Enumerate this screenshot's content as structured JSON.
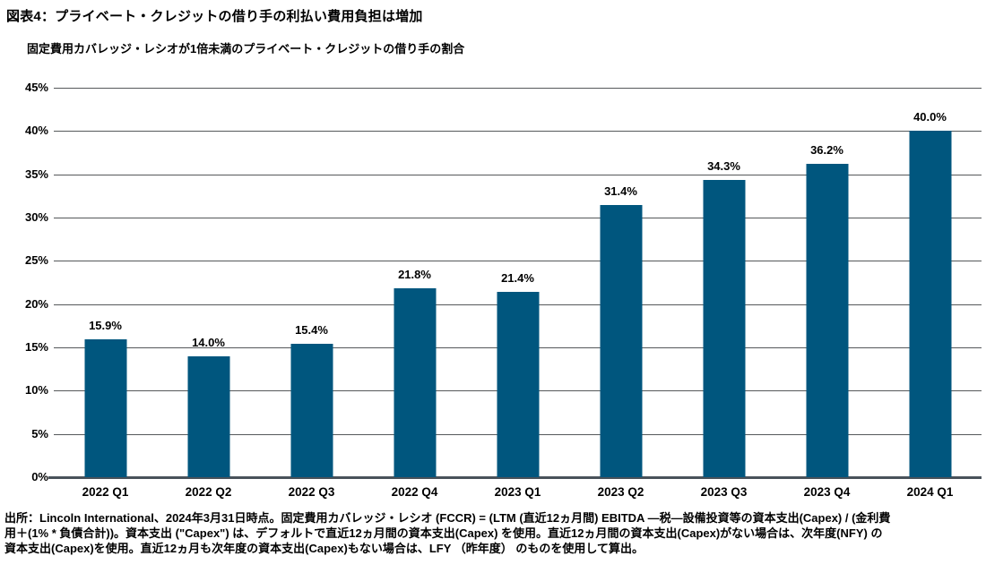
{
  "header": {
    "title": "図表4：プライベート・クレジットの借り手の利払い費用負担は増加",
    "subtitle": "固定費用カバレッジ・レシオが1倍未満のプライベート・クレジットの借り手の割合"
  },
  "chart_data": {
    "type": "bar",
    "title": "図表4：プライベート・クレジットの借り手の利払い費用負担は増加",
    "subtitle": "固定費用カバレッジ・レシオが1倍未満のプライベート・クレジットの借り手の割合",
    "categories": [
      "2022 Q1",
      "2022 Q2",
      "2022 Q3",
      "2022 Q4",
      "2023 Q1",
      "2023 Q2",
      "2023 Q3",
      "2023 Q4",
      "2024 Q1"
    ],
    "values": [
      15.9,
      14.0,
      15.4,
      21.8,
      21.4,
      31.4,
      34.3,
      36.2,
      40.0
    ],
    "value_labels": [
      "15.9%",
      "14.0%",
      "15.4%",
      "21.8%",
      "21.4%",
      "31.4%",
      "34.3%",
      "36.2%",
      "40.0%"
    ],
    "xlabel": "",
    "ylabel": "",
    "ylim": [
      0,
      45
    ],
    "ytick_step": 5,
    "ytick_labels_top_down": [
      "45%",
      "40%",
      "35%",
      "30%",
      "25%",
      "20%",
      "15%",
      "10%",
      "5%",
      "0%"
    ],
    "grid": true,
    "legend": false,
    "bar_color": "#00567E",
    "gridline_color": "#55585A",
    "baseline_color": "#49525A",
    "label_color": "#000000"
  },
  "footer": {
    "lines": [
      "出所：Lincoln International、2024年3月31日時点。固定費用カバレッジ・レシオ (FCCR) = (LTM (直近12ヵ月間) EBITDA ―税―設備投資等の資本支出(Capex) / (金利費",
      "用＋(1% * 負債合計))。資本支出 (\"Capex\") は、デフォルトで直近12ヵ月間の資本支出(Capex) を使用。直近12ヵ月間の資本支出(Capex)がない場合は、次年度(NFY) の",
      "資本支出(Capex)を使用。直近12ヵ月も次年度の資本支出(Capex)もない場合は、LFY （昨年度） のものを使用して算出。"
    ]
  }
}
